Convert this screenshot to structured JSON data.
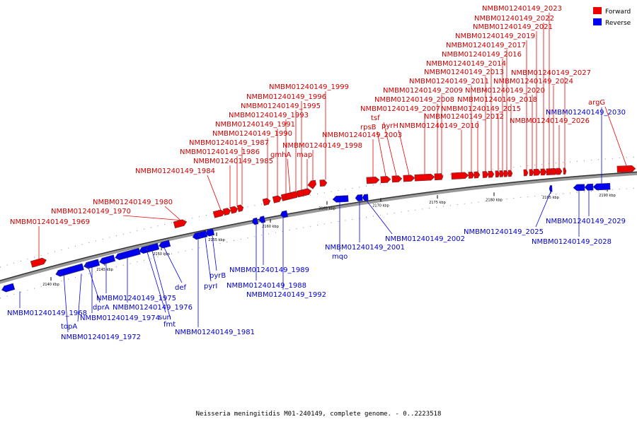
{
  "caption": "Neisseria meningitidis M01-240149, complete genome. - 0..2223518",
  "legend": [
    {
      "label": "Forward",
      "color": "#ee0000"
    },
    {
      "label": "Reverse",
      "color": "#0000ee"
    }
  ],
  "ticks": [
    "2140 kbp",
    "2145 kbp",
    "2150 kbp",
    "2155 kbp",
    "2160 kbp",
    "2165 kbp",
    "2170 kbp",
    "2175 kbp",
    "2180 kbp",
    "2185 kbp",
    "2190 kbp"
  ],
  "genes": [
    {
      "label": "NMBM01240149_1968",
      "strand": "reverse"
    },
    {
      "label": "NMBM01240149_1969",
      "strand": "forward"
    },
    {
      "label": "NMBM01240149_1970",
      "strand": "forward"
    },
    {
      "label": "topA",
      "strand": "reverse"
    },
    {
      "label": "NMBM01240149_1972",
      "strand": "reverse"
    },
    {
      "label": "dprA",
      "strand": "reverse"
    },
    {
      "label": "NMBM01240149_1974",
      "strand": "reverse"
    },
    {
      "label": "NMBM01240149_1975",
      "strand": "reverse"
    },
    {
      "label": "NMBM01240149_1976",
      "strand": "reverse"
    },
    {
      "label": "sun",
      "strand": "reverse"
    },
    {
      "label": "fmt",
      "strand": "reverse"
    },
    {
      "label": "def",
      "strand": "reverse"
    },
    {
      "label": "NMBM01240149_1980",
      "strand": "forward"
    },
    {
      "label": "NMBM01240149_1981",
      "strand": "reverse"
    },
    {
      "label": "pyrI",
      "strand": "reverse"
    },
    {
      "label": "pyrB",
      "strand": "reverse"
    },
    {
      "label": "NMBM01240149_1984",
      "strand": "forward"
    },
    {
      "label": "NMBM01240149_1985",
      "strand": "forward"
    },
    {
      "label": "NMBM01240149_1986",
      "strand": "forward"
    },
    {
      "label": "NMBM01240149_1987",
      "strand": "forward"
    },
    {
      "label": "NMBM01240149_1988",
      "strand": "reverse"
    },
    {
      "label": "NMBM01240149_1989",
      "strand": "reverse"
    },
    {
      "label": "NMBM01240149_1990",
      "strand": "forward"
    },
    {
      "label": "NMBM01240149_1991",
      "strand": "forward"
    },
    {
      "label": "NMBM01240149_1992",
      "strand": "reverse"
    },
    {
      "label": "NMBM01240149_1993",
      "strand": "forward"
    },
    {
      "label": "gmhA",
      "strand": "forward"
    },
    {
      "label": "NMBM01240149_1995",
      "strand": "forward"
    },
    {
      "label": "NMBM01240149_1996",
      "strand": "forward"
    },
    {
      "label": "map",
      "strand": "forward"
    },
    {
      "label": "NMBM01240149_1998",
      "strand": "forward"
    },
    {
      "label": "NMBM01240149_1999",
      "strand": "forward"
    },
    {
      "label": "mqo",
      "strand": "reverse"
    },
    {
      "label": "NMBM01240149_2001",
      "strand": "reverse"
    },
    {
      "label": "NMBM01240149_2002",
      "strand": "reverse"
    },
    {
      "label": "NMBM01240149_2003",
      "strand": "forward"
    },
    {
      "label": "rpsB",
      "strand": "forward"
    },
    {
      "label": "tsf",
      "strand": "forward"
    },
    {
      "label": "pyrH",
      "strand": "forward"
    },
    {
      "label": "NMBM01240149_2007",
      "strand": "forward"
    },
    {
      "label": "NMBM01240149_2008",
      "strand": "forward"
    },
    {
      "label": "NMBM01240149_2009",
      "strand": "forward"
    },
    {
      "label": "NMBM01240149_2010",
      "strand": "forward"
    },
    {
      "label": "NMBM01240149_2011",
      "strand": "forward"
    },
    {
      "label": "NMBM01240149_2012",
      "strand": "forward"
    },
    {
      "label": "NMBM01240149_2013",
      "strand": "forward"
    },
    {
      "label": "NMBM01240149_2014",
      "strand": "forward"
    },
    {
      "label": "NMBM01240149_2015",
      "strand": "forward"
    },
    {
      "label": "NMBM01240149_2016",
      "strand": "forward"
    },
    {
      "label": "NMBM01240149_2017",
      "strand": "forward"
    },
    {
      "label": "NMBM01240149_2018",
      "strand": "forward"
    },
    {
      "label": "NMBM01240149_2019",
      "strand": "forward"
    },
    {
      "label": "NMBM01240149_2020",
      "strand": "forward"
    },
    {
      "label": "NMBM01240149_2021",
      "strand": "forward"
    },
    {
      "label": "NMBM01240149_2022",
      "strand": "forward"
    },
    {
      "label": "NMBM01240149_2023",
      "strand": "forward"
    },
    {
      "label": "NMBM01240149_2024",
      "strand": "forward"
    },
    {
      "label": "NMBM01240149_2025",
      "strand": "reverse"
    },
    {
      "label": "NMBM01240149_2026",
      "strand": "forward"
    },
    {
      "label": "NMBM01240149_2027",
      "strand": "forward"
    },
    {
      "label": "NMBM01240149_2028",
      "strand": "reverse"
    },
    {
      "label": "NMBM01240149_2029",
      "strand": "reverse"
    },
    {
      "label": "NMBM01240149_2030",
      "strand": "reverse"
    },
    {
      "label": "argG",
      "strand": "forward"
    }
  ]
}
